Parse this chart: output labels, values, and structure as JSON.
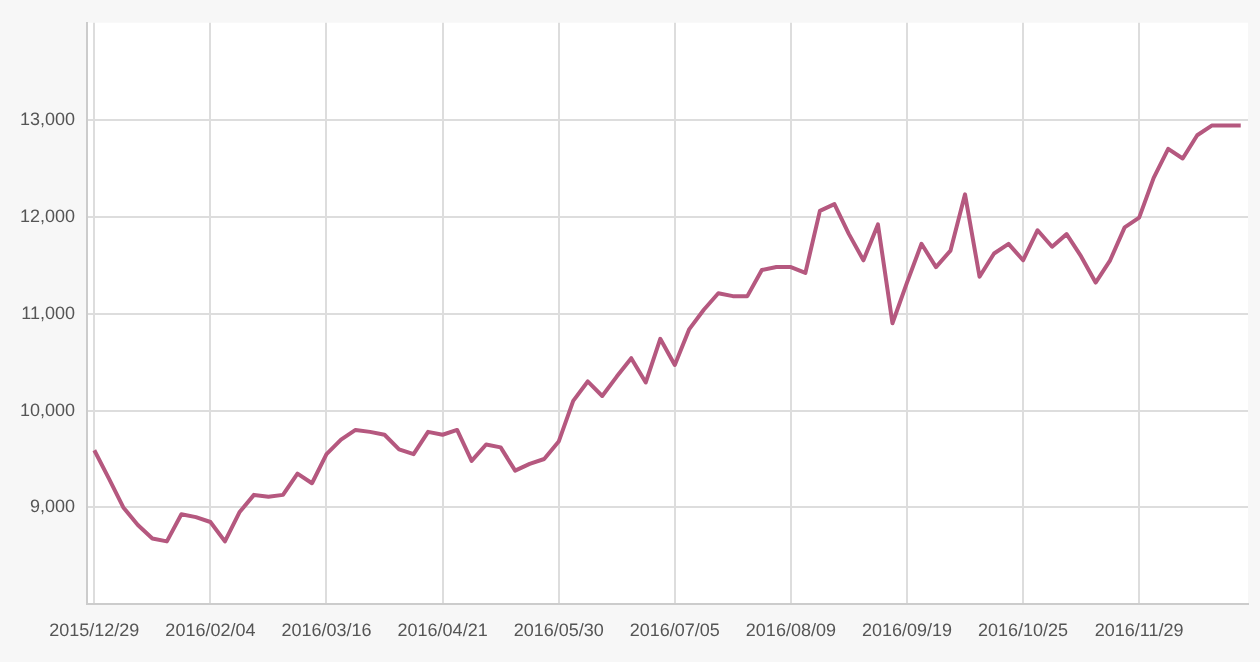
{
  "chart_data": {
    "type": "line",
    "categories": [
      "2015/12/29",
      null,
      null,
      null,
      null,
      null,
      null,
      null,
      "2016/02/04",
      null,
      null,
      null,
      null,
      null,
      null,
      null,
      "2016/03/16",
      null,
      null,
      null,
      null,
      null,
      null,
      null,
      "2016/04/21",
      null,
      null,
      null,
      null,
      null,
      null,
      null,
      "2016/05/30",
      null,
      null,
      null,
      null,
      null,
      null,
      null,
      "2016/07/05",
      null,
      null,
      null,
      null,
      null,
      null,
      null,
      "2016/08/09",
      null,
      null,
      null,
      null,
      null,
      null,
      null,
      "2016/09/19",
      null,
      null,
      null,
      null,
      null,
      null,
      null,
      "2016/10/25",
      null,
      null,
      null,
      null,
      null,
      null,
      null,
      "2016/11/29",
      null,
      null,
      null,
      null,
      null,
      null,
      null
    ],
    "series": [
      {
        "color": "#b5587f",
        "values": [
          9590,
          9300,
          9000,
          8820,
          8680,
          8650,
          8930,
          8900,
          8850,
          8650,
          8950,
          9130,
          9110,
          9130,
          9350,
          9250,
          9550,
          9700,
          9800,
          9780,
          9750,
          9600,
          9550,
          9780,
          9750,
          9800,
          9480,
          9650,
          9620,
          9380,
          9450,
          9500,
          9680,
          10100,
          10300,
          10150,
          10350,
          10540,
          10290,
          10740,
          10470,
          10840,
          11040,
          11210,
          11180,
          11180,
          11450,
          11480,
          11480,
          11420,
          12060,
          12130,
          11820,
          11550,
          11920,
          10900,
          11320,
          11720,
          11480,
          11650,
          12230,
          11380,
          11620,
          11720,
          11550,
          11860,
          11690,
          11820,
          11590,
          11320,
          11550,
          11890,
          11990,
          12400,
          12700,
          12600,
          12840,
          12940,
          12940,
          12940
        ]
      }
    ],
    "ylim": [
      8000,
      14000
    ],
    "yticks": [
      {
        "value": 9000,
        "label": "9,000"
      },
      {
        "value": 10000,
        "label": "10,000"
      },
      {
        "value": 11000,
        "label": "11,000"
      },
      {
        "value": 12000,
        "label": "12,000"
      },
      {
        "value": 13000,
        "label": "13,000"
      }
    ],
    "grid": true,
    "legend": false,
    "marker": "none",
    "line_style": "solid"
  }
}
